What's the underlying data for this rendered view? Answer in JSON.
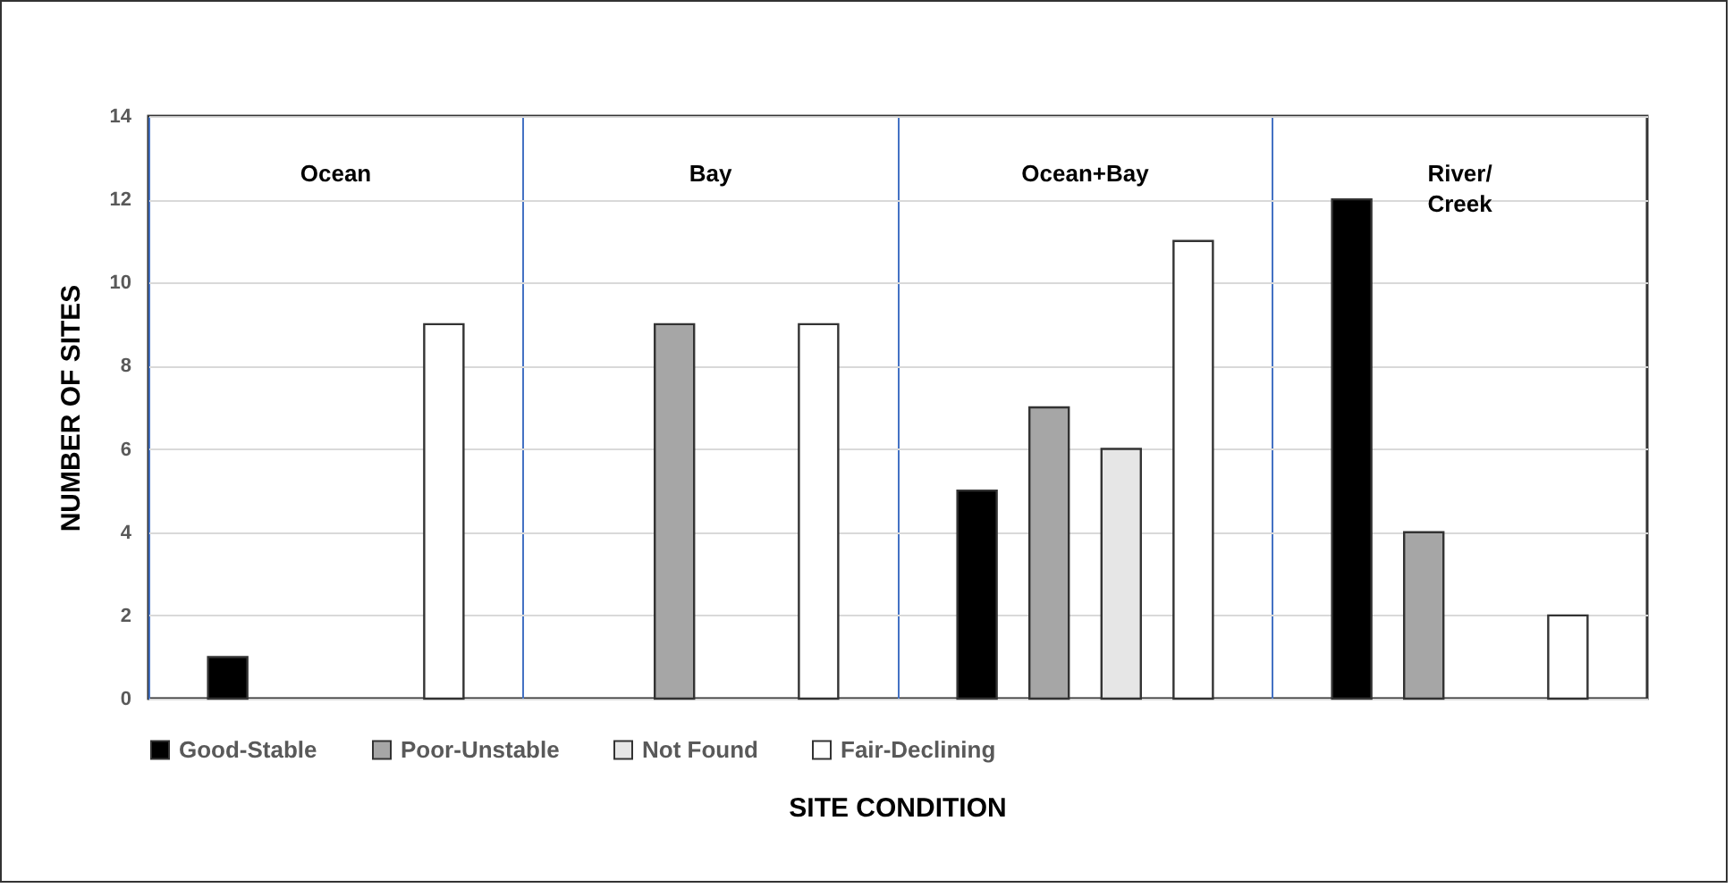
{
  "chart_data": {
    "type": "bar",
    "xlabel": "SITE CONDITION",
    "ylabel": "NUMBER OF SITES",
    "categories": [
      "Ocean",
      "Bay",
      "Ocean+Bay",
      "River/ Creek"
    ],
    "series": [
      {
        "name": "Good-Stable",
        "color": "#000000",
        "values": [
          1,
          null,
          5,
          12
        ]
      },
      {
        "name": "Poor-Unstable",
        "color": "#a6a6a6",
        "values": [
          null,
          9,
          7,
          4
        ]
      },
      {
        "name": "Not Found",
        "color": "#e6e6e6",
        "values": [
          null,
          null,
          6,
          null
        ]
      },
      {
        "name": "Fair-Declining",
        "color": "#ffffff",
        "values": [
          9,
          9,
          11,
          2
        ]
      }
    ],
    "ylim": [
      0,
      14
    ],
    "yticks": [
      0,
      2,
      4,
      6,
      8,
      10,
      12,
      14
    ],
    "grid": true,
    "legend": "bottom"
  }
}
